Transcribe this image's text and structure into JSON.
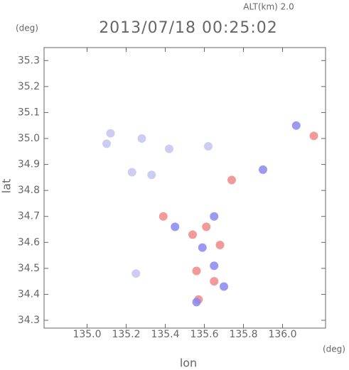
{
  "chart_data": {
    "type": "scatter",
    "title": "2013/07/18 00:25:02",
    "subtitle": "ALT(km) 2.0",
    "y_unit": "(deg)",
    "x_unit": "(deg)",
    "x_label": "lon",
    "y_label": "lat",
    "xlim": [
      134.78,
      136.22
    ],
    "ylim": [
      34.27,
      35.35
    ],
    "xticks": [
      {
        "value": 135,
        "label": "135.0"
      },
      135.2,
      135.4,
      135.6,
      135.8,
      {
        "value": 136,
        "label": "136.0"
      }
    ],
    "yticks": [
      {
        "value": 34.3,
        "label": "34.3"
      },
      34.4,
      34.5,
      34.6,
      34.7,
      34.8,
      34.9,
      {
        "value": 35,
        "label": "35.0"
      },
      35.1,
      35.2,
      35.3
    ],
    "series": [
      {
        "color": "#c4c4f2",
        "x": [
          135.1,
          135.28,
          135.33,
          135.23,
          135.42,
          135.12,
          135.25,
          135.62
        ],
        "y": [
          34.98,
          35.0,
          34.86,
          34.87,
          34.96,
          35.02,
          34.48,
          34.97
        ]
      },
      {
        "color": "#f08888",
        "x": [
          135.54,
          135.61,
          135.56,
          135.57,
          135.39,
          135.65,
          135.74,
          136.16,
          135.68
        ],
        "y": [
          34.63,
          34.66,
          34.49,
          34.38,
          34.7,
          34.45,
          34.84,
          35.01,
          34.59
        ]
      },
      {
        "color": "#8888f0",
        "x": [
          135.45,
          135.65,
          135.59,
          135.7,
          135.9,
          136.07,
          135.56,
          135.65
        ],
        "y": [
          34.66,
          34.7,
          34.58,
          34.43,
          34.88,
          35.05,
          34.37,
          34.51
        ]
      }
    ]
  }
}
